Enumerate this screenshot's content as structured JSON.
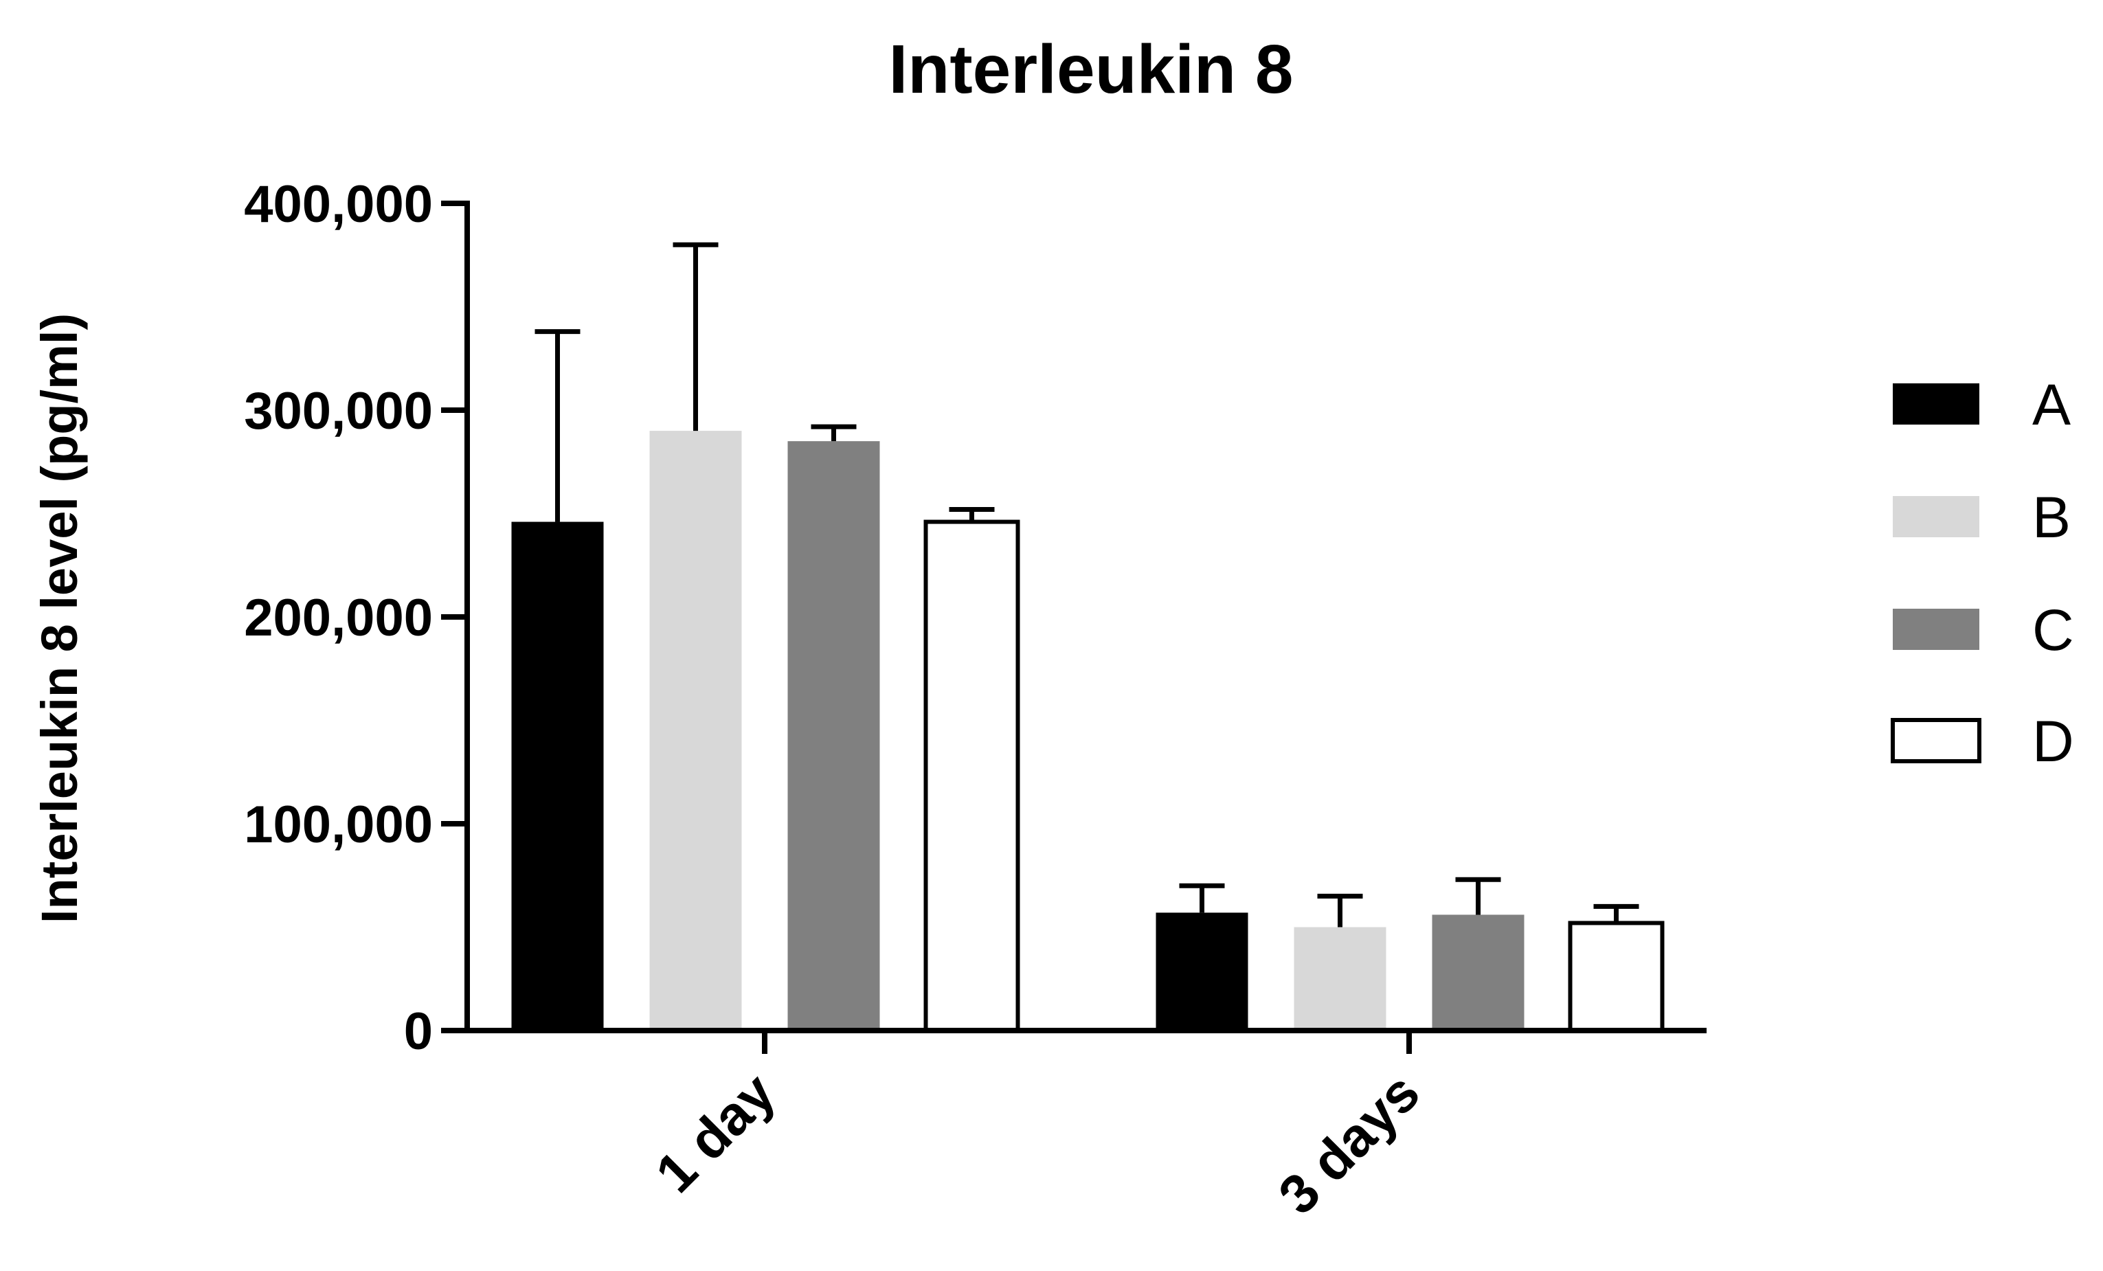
{
  "chart_data": {
    "type": "bar",
    "title": "Interleukin 8",
    "xlabel": "",
    "ylabel": "Interleukin 8 level (pg/ml)",
    "ylim": [
      0,
      400000
    ],
    "yticks": [
      0,
      100000,
      200000,
      300000,
      400000
    ],
    "ytick_labels": [
      "0",
      "100,000",
      "200,000",
      "300,000",
      "400,000"
    ],
    "categories": [
      "1 day",
      "3 days"
    ],
    "series": [
      {
        "name": "A",
        "color": "#000000",
        "values": [
          246000,
          57000
        ],
        "errors": [
          92000,
          13000
        ]
      },
      {
        "name": "B",
        "color": "#d8d8d8",
        "values": [
          290000,
          50000
        ],
        "errors": [
          90000,
          15000
        ]
      },
      {
        "name": "C",
        "color": "#808080",
        "values": [
          285000,
          56000
        ],
        "errors": [
          7000,
          17000
        ]
      },
      {
        "name": "D",
        "color": "#ffffff",
        "values": [
          246000,
          52000
        ],
        "errors": [
          6000,
          8000
        ]
      }
    ],
    "error_bars": "upper",
    "grid": false,
    "legend_position": "right"
  }
}
